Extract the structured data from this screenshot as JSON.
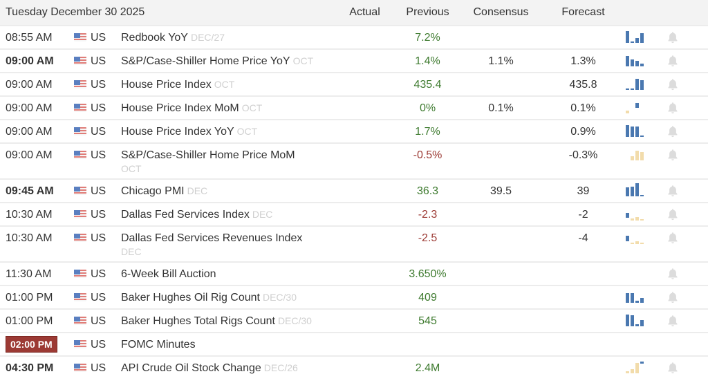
{
  "header": {
    "date": "Tuesday December 30 2025",
    "columns": [
      "Actual",
      "Previous",
      "Consensus",
      "Forecast"
    ]
  },
  "colors": {
    "positive": "#3d7a2e",
    "negative": "#9c3a34",
    "sparkline_up": "#4a78b0",
    "sparkline_down": "#f2dcab",
    "live_badge": "#9c3a34",
    "header_bg": "#f3f3f3"
  },
  "events": [
    {
      "time": "08:55 AM",
      "bold": false,
      "badge": false,
      "country": "US",
      "event": "Redbook YoY",
      "ref": "DEC/27",
      "actual": "",
      "previous": "7.2%",
      "previous_color": "green",
      "consensus": "",
      "forecast": "",
      "sparkline": [
        {
          "h": 17,
          "t": "pos"
        },
        {
          "h": 2,
          "t": "flat"
        },
        {
          "h": 7,
          "t": "pos"
        },
        {
          "h": 14,
          "t": "pos"
        }
      ],
      "bell": true
    },
    {
      "time": "09:00 AM",
      "bold": true,
      "badge": false,
      "country": "US",
      "event": "S&P/Case-Shiller Home Price YoY",
      "ref": "OCT",
      "actual": "",
      "previous": "1.4%",
      "previous_color": "green",
      "consensus": "1.1%",
      "forecast": "1.3%",
      "sparkline": [
        {
          "h": 15,
          "t": "pos"
        },
        {
          "h": 10,
          "t": "pos"
        },
        {
          "h": 8,
          "t": "pos"
        },
        {
          "h": 4,
          "t": "pos"
        }
      ],
      "bell": true
    },
    {
      "time": "09:00 AM",
      "bold": false,
      "badge": false,
      "country": "US",
      "event": "House Price Index",
      "ref": "OCT",
      "actual": "",
      "previous": "435.4",
      "previous_color": "green",
      "consensus": "",
      "forecast": "435.8",
      "sparkline": [
        {
          "h": 2,
          "t": "flat"
        },
        {
          "h": 2,
          "t": "flat"
        },
        {
          "h": 16,
          "t": "pos"
        },
        {
          "h": 14,
          "t": "pos"
        }
      ],
      "bell": true
    },
    {
      "time": "09:00 AM",
      "bold": false,
      "badge": false,
      "country": "US",
      "event": "House Price Index MoM",
      "ref": "OCT",
      "actual": "",
      "previous": "0%",
      "previous_color": "green",
      "consensus": "0.1%",
      "forecast": "0.1%",
      "sparkline": [
        {
          "h": 4,
          "t": "neg"
        },
        {
          "h": 0,
          "t": "none"
        },
        {
          "h": 7,
          "t": "pos",
          "raise": 8
        },
        {
          "h": 0,
          "t": "none"
        }
      ],
      "bell": true
    },
    {
      "time": "09:00 AM",
      "bold": false,
      "badge": false,
      "country": "US",
      "event": "House Price Index YoY",
      "ref": "OCT",
      "actual": "",
      "previous": "1.7%",
      "previous_color": "green",
      "consensus": "",
      "forecast": "0.9%",
      "sparkline": [
        {
          "h": 17,
          "t": "pos"
        },
        {
          "h": 15,
          "t": "pos"
        },
        {
          "h": 15,
          "t": "pos"
        },
        {
          "h": 2,
          "t": "flat"
        }
      ],
      "bell": true
    },
    {
      "time": "09:00 AM",
      "bold": false,
      "badge": false,
      "country": "US",
      "event": "S&P/Case-Shiller Home Price MoM",
      "ref": "OCT",
      "ref_block": true,
      "actual": "",
      "previous": "-0.5%",
      "previous_color": "red",
      "consensus": "",
      "forecast": "-0.3%",
      "sparkline": [
        {
          "h": 0,
          "t": "none"
        },
        {
          "h": 6,
          "t": "neg"
        },
        {
          "h": 14,
          "t": "neg"
        },
        {
          "h": 12,
          "t": "neg"
        }
      ],
      "bell": true
    },
    {
      "time": "09:45 AM",
      "bold": true,
      "badge": false,
      "country": "US",
      "event": "Chicago PMI",
      "ref": "DEC",
      "actual": "",
      "previous": "36.3",
      "previous_color": "green",
      "consensus": "39.5",
      "forecast": "39",
      "sparkline": [
        {
          "h": 13,
          "t": "pos"
        },
        {
          "h": 14,
          "t": "pos"
        },
        {
          "h": 19,
          "t": "pos"
        },
        {
          "h": 2,
          "t": "flat"
        }
      ],
      "bell": true
    },
    {
      "time": "10:30 AM",
      "bold": false,
      "badge": false,
      "country": "US",
      "event": "Dallas Fed Services Index",
      "ref": "DEC",
      "actual": "",
      "previous": "-2.3",
      "previous_color": "red",
      "consensus": "",
      "forecast": "-2",
      "sparkline": [
        {
          "h": 7,
          "t": "pos",
          "raise": 4
        },
        {
          "h": 3,
          "t": "neg"
        },
        {
          "h": 5,
          "t": "neg"
        },
        {
          "h": 2,
          "t": "negflat"
        }
      ],
      "bell": true
    },
    {
      "time": "10:30 AM",
      "bold": false,
      "badge": false,
      "country": "US",
      "event": "Dallas Fed Services Revenues Index",
      "ref": "DEC",
      "ref_block": true,
      "actual": "",
      "previous": "-2.5",
      "previous_color": "red",
      "consensus": "",
      "forecast": "-4",
      "sparkline": [
        {
          "h": 8,
          "t": "pos",
          "raise": 4
        },
        {
          "h": 2,
          "t": "negflat"
        },
        {
          "h": 4,
          "t": "neg"
        },
        {
          "h": 2,
          "t": "negflat"
        }
      ],
      "bell": true
    },
    {
      "time": "11:30 AM",
      "bold": false,
      "badge": false,
      "country": "US",
      "event": "6-Week Bill Auction",
      "ref": "",
      "actual": "",
      "previous": "3.650%",
      "previous_color": "green",
      "consensus": "",
      "forecast": "",
      "sparkline": [],
      "bell": true
    },
    {
      "time": "01:00 PM",
      "bold": false,
      "badge": false,
      "country": "US",
      "event": "Baker Hughes Oil Rig Count",
      "ref": "DEC/30",
      "actual": "",
      "previous": "409",
      "previous_color": "green",
      "consensus": "",
      "forecast": "",
      "sparkline": [
        {
          "h": 14,
          "t": "pos"
        },
        {
          "h": 14,
          "t": "pos"
        },
        {
          "h": 3,
          "t": "pos"
        },
        {
          "h": 7,
          "t": "pos"
        }
      ],
      "bell": true
    },
    {
      "time": "01:00 PM",
      "bold": false,
      "badge": false,
      "country": "US",
      "event": "Baker Hughes Total Rigs Count",
      "ref": "DEC/30",
      "actual": "",
      "previous": "545",
      "previous_color": "green",
      "consensus": "",
      "forecast": "",
      "sparkline": [
        {
          "h": 17,
          "t": "pos"
        },
        {
          "h": 16,
          "t": "pos"
        },
        {
          "h": 3,
          "t": "pos"
        },
        {
          "h": 9,
          "t": "pos"
        }
      ],
      "bell": true
    },
    {
      "time": "02:00 PM",
      "bold": true,
      "badge": true,
      "country": "US",
      "event": "FOMC Minutes",
      "ref": "",
      "actual": "",
      "previous": "",
      "previous_color": "",
      "consensus": "",
      "forecast": "",
      "sparkline": [],
      "bell": false
    },
    {
      "time": "04:30 PM",
      "bold": true,
      "badge": false,
      "country": "US",
      "event": "API Crude Oil Stock Change",
      "ref": "DEC/26",
      "actual": "",
      "previous": "2.4M",
      "previous_color": "green",
      "consensus": "",
      "forecast": "",
      "sparkline": [
        {
          "h": 3,
          "t": "negflat"
        },
        {
          "h": 6,
          "t": "neg"
        },
        {
          "h": 15,
          "t": "neg"
        },
        {
          "h": 3,
          "t": "pos",
          "raise": 14
        }
      ],
      "bell": true
    }
  ]
}
